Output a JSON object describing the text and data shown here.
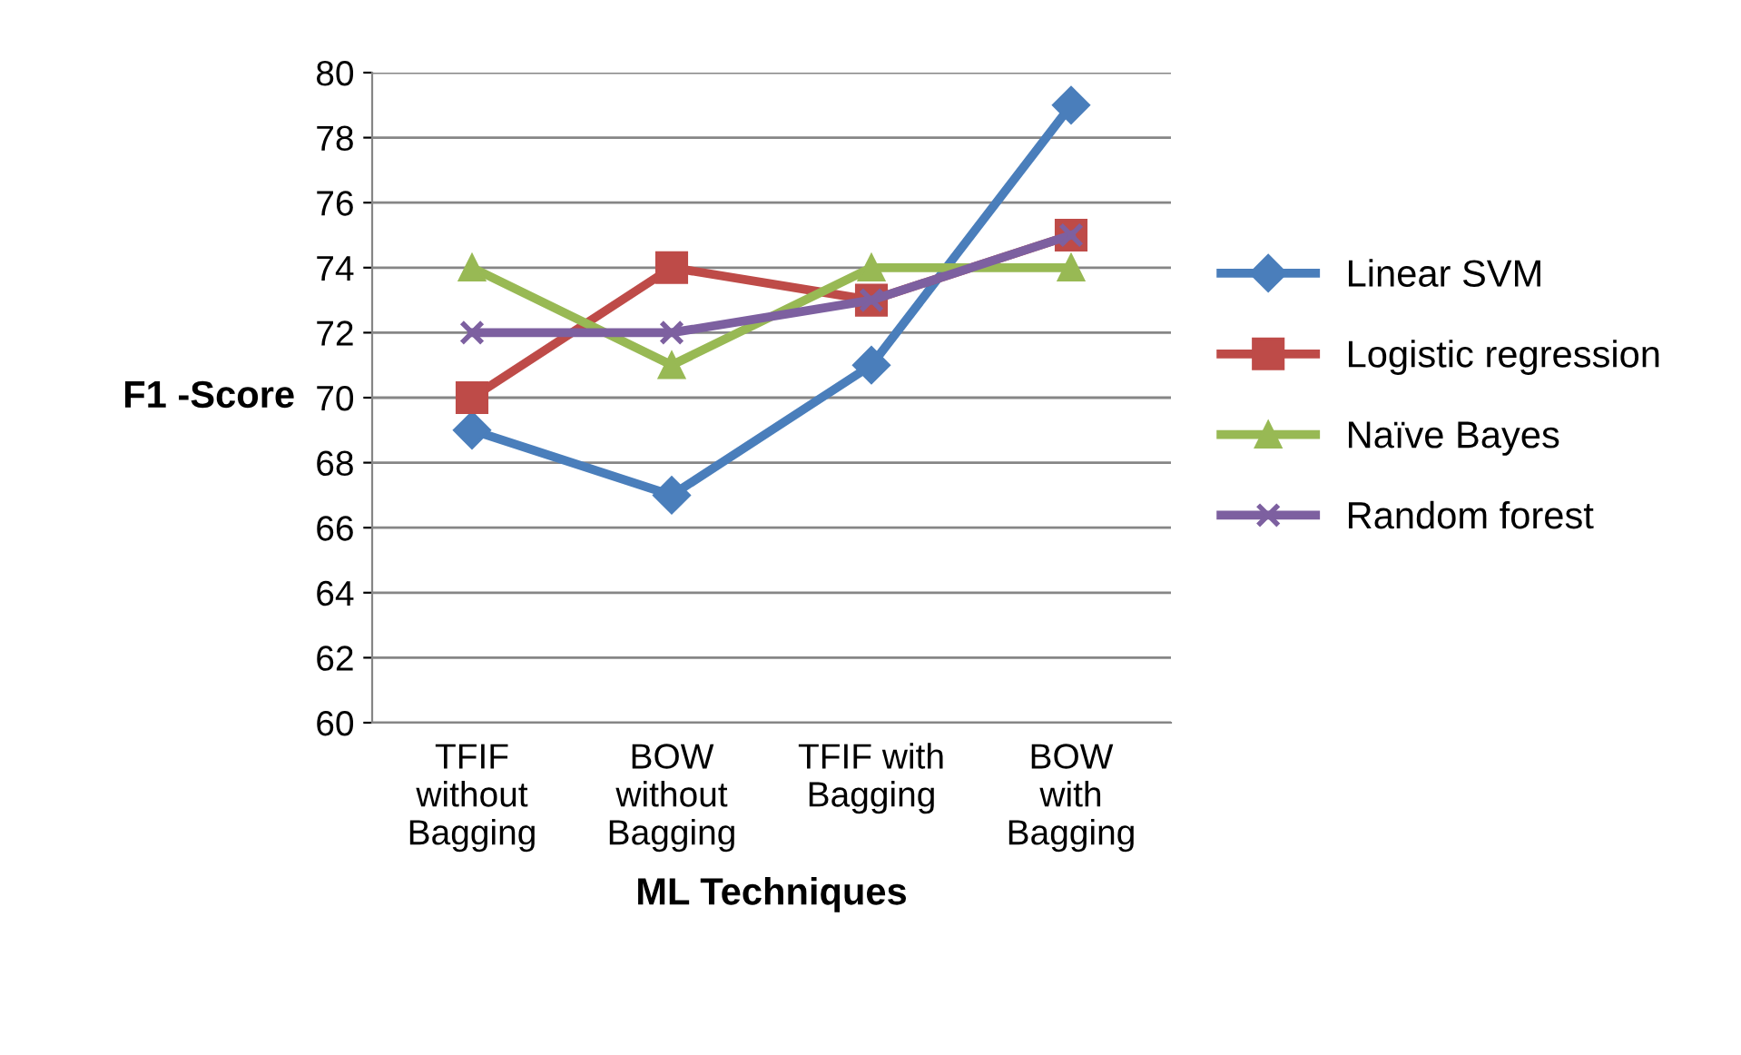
{
  "chart_data": {
    "type": "line",
    "xlabel": "ML Techniques",
    "ylabel": "F1 -Score",
    "categories": [
      "TFIF\nwithout\nBagging",
      "BOW\nwithout\nBagging",
      "TFIF with\nBagging",
      "BOW\nwith\nBagging"
    ],
    "series": [
      {
        "name": "Linear SVM",
        "color": "#4a7ebb",
        "marker": "diamond",
        "values": [
          69,
          67,
          71,
          79
        ]
      },
      {
        "name": "Logistic regression",
        "color": "#be4b48",
        "marker": "square",
        "values": [
          70,
          74,
          73,
          75
        ]
      },
      {
        "name": "Naïve Bayes",
        "color": "#98b954",
        "marker": "triangle",
        "values": [
          74,
          71,
          74,
          74
        ]
      },
      {
        "name": "Random forest",
        "color": "#7d60a0",
        "marker": "cross",
        "values": [
          72,
          72,
          73,
          75
        ]
      }
    ],
    "ylim": [
      60,
      80
    ],
    "yticks": [
      60,
      62,
      64,
      66,
      68,
      70,
      72,
      74,
      76,
      78,
      80
    ],
    "grid": "y",
    "legend": "right",
    "line_style": "solid"
  }
}
